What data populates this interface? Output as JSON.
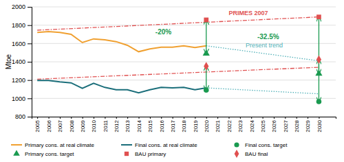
{
  "chart_data": {
    "type": "line",
    "ylabel": "Mtoe",
    "xlim": [
      2004.5,
      2031.5
    ],
    "xticks": [
      2005,
      2006,
      2007,
      2008,
      2009,
      2010,
      2011,
      2012,
      2013,
      2014,
      2015,
      2016,
      2017,
      2018,
      2019,
      2020,
      2021,
      2022,
      2023,
      2024,
      2025,
      2026,
      2027,
      2028,
      2029,
      2030
    ],
    "ylim": [
      800,
      2000
    ],
    "yticks": [
      800,
      1000,
      1200,
      1400,
      1600,
      1800,
      2000
    ],
    "grid": true,
    "legend": "bottom",
    "series": [
      {
        "name": "Primary cons. at real climate",
        "type": "line",
        "line_style": "solid",
        "color": "#f0a030",
        "x": [
          2005,
          2006,
          2007,
          2008,
          2009,
          2010,
          2011,
          2012,
          2013,
          2014,
          2015,
          2016,
          2017,
          2018,
          2019,
          2020
        ],
        "values": [
          1720,
          1730,
          1720,
          1700,
          1610,
          1650,
          1640,
          1620,
          1580,
          1510,
          1540,
          1560,
          1560,
          1575,
          1555,
          1575
        ]
      },
      {
        "name": "Final cons. at real climate",
        "type": "line",
        "line_style": "solid",
        "color": "#1a6e7a",
        "x": [
          2005,
          2006,
          2007,
          2008,
          2009,
          2010,
          2011,
          2012,
          2013,
          2014,
          2015,
          2016,
          2017,
          2018,
          2019,
          2020
        ],
        "values": [
          1195,
          1195,
          1180,
          1170,
          1110,
          1165,
          1120,
          1095,
          1095,
          1060,
          1095,
          1120,
          1115,
          1120,
          1095,
          1115
        ]
      },
      {
        "name": "Final cons. target",
        "type": "scatter",
        "marker": "circle",
        "color": "#1a9a50",
        "x": [
          2020,
          2030
        ],
        "values": [
          1090,
          965
        ]
      },
      {
        "name": "Primary cons. target",
        "type": "scatter",
        "marker": "triangle",
        "color": "#1a9a50",
        "x": [
          2020,
          2030
        ],
        "values": [
          1490,
          1270
        ]
      },
      {
        "name": "BAU primary",
        "type": "scatter",
        "marker": "square",
        "color": "#e05050",
        "x": [
          2020,
          2030
        ],
        "values": [
          1858,
          1890
        ]
      },
      {
        "name": "BAU final",
        "type": "scatter",
        "marker": "diamond",
        "color": "#e05050",
        "x": [
          2020,
          2030
        ],
        "values": [
          1352,
          1425
        ]
      },
      {
        "type": "line",
        "line_style": "dashdot",
        "color": "#e05050",
        "x": [
          2005,
          2030
        ],
        "values": [
          1745,
          1890
        ]
      },
      {
        "type": "line",
        "line_style": "dashdot",
        "color": "#e05050",
        "x": [
          2005,
          2030
        ],
        "values": [
          1210,
          1340
        ]
      },
      {
        "type": "line",
        "line_style": "dotted",
        "color": "#50b0b8",
        "x": [
          2020,
          2030
        ],
        "values": [
          1575,
          1410
        ]
      },
      {
        "type": "line",
        "line_style": "dotted",
        "color": "#50b0b8",
        "x": [
          2020,
          2030
        ],
        "values": [
          1115,
          1050
        ]
      }
    ],
    "arrows": [
      {
        "x": 2020,
        "from": 1858,
        "to": 1490,
        "color": "#1a9a50"
      },
      {
        "x": 2020,
        "from": 1352,
        "to": 1090,
        "color": "#1a9a50"
      },
      {
        "x": 2030,
        "from": 1890,
        "to": 1270,
        "color": "#1a9a50"
      },
      {
        "x": 2030,
        "from": 1425,
        "to": 965,
        "color": "#1a9a50"
      }
    ],
    "annotations": [
      {
        "text": "-20%",
        "x": 2016.2,
        "y": 1700,
        "color": "#1a9a50"
      },
      {
        "text": "-32.5%",
        "x": 2025.5,
        "y": 1650,
        "color": "#1a9a50"
      },
      {
        "text": "PRIMES 2007",
        "x": 2022.0,
        "y": 1910,
        "color": "#e05050"
      },
      {
        "text": "Present trend",
        "x": 2023.5,
        "y": 1555,
        "color": "#50b0b8"
      }
    ]
  }
}
